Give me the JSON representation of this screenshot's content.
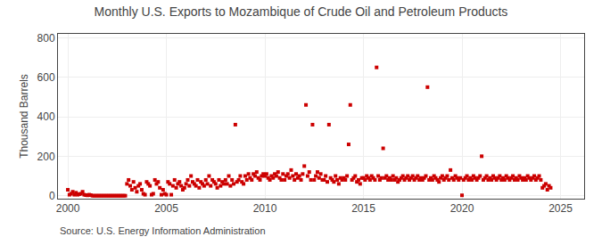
{
  "chart_data": {
    "type": "scatter",
    "title": "Monthly U.S. Exports to Mozambique of Crude Oil and Petroleum Products",
    "ylabel": "Thousand Barrels",
    "annotations": [
      "Source: U.S. Energy Information Administration"
    ],
    "color": "#cc0000",
    "marker": "square",
    "grid": true,
    "xlim": [
      1999.5,
      2026.2
    ],
    "ylim": [
      -15,
      820
    ],
    "xticks": [
      2000,
      2005,
      2010,
      2015,
      2020,
      2025
    ],
    "yticks": [
      0,
      200,
      400,
      600,
      800
    ],
    "x": [
      2000.0,
      2000.083,
      2000.167,
      2000.25,
      2000.333,
      2000.417,
      2000.5,
      2000.583,
      2000.667,
      2000.75,
      2000.833,
      2000.917,
      2001.0,
      2001.083,
      2001.167,
      2001.25,
      2001.333,
      2001.417,
      2001.5,
      2001.583,
      2001.667,
      2001.75,
      2001.833,
      2001.917,
      2002.0,
      2002.083,
      2002.167,
      2002.25,
      2002.333,
      2002.417,
      2002.5,
      2002.583,
      2002.667,
      2002.75,
      2002.833,
      2002.917,
      2003.0,
      2003.083,
      2003.167,
      2003.25,
      2003.333,
      2003.417,
      2003.5,
      2003.583,
      2003.667,
      2003.75,
      2003.833,
      2003.917,
      2004.0,
      2004.083,
      2004.167,
      2004.25,
      2004.333,
      2004.417,
      2004.5,
      2004.583,
      2004.667,
      2004.75,
      2004.833,
      2004.917,
      2005.0,
      2005.083,
      2005.167,
      2005.25,
      2005.333,
      2005.417,
      2005.5,
      2005.583,
      2005.667,
      2005.75,
      2005.833,
      2005.917,
      2006.0,
      2006.083,
      2006.167,
      2006.25,
      2006.333,
      2006.417,
      2006.5,
      2006.583,
      2006.667,
      2006.75,
      2006.833,
      2006.917,
      2007.0,
      2007.083,
      2007.167,
      2007.25,
      2007.333,
      2007.417,
      2007.5,
      2007.583,
      2007.667,
      2007.75,
      2007.833,
      2007.917,
      2008.0,
      2008.083,
      2008.167,
      2008.25,
      2008.333,
      2008.417,
      2008.5,
      2008.583,
      2008.667,
      2008.75,
      2008.833,
      2008.917,
      2009.0,
      2009.083,
      2009.167,
      2009.25,
      2009.333,
      2009.417,
      2009.5,
      2009.583,
      2009.667,
      2009.75,
      2009.833,
      2009.917,
      2010.0,
      2010.083,
      2010.167,
      2010.25,
      2010.333,
      2010.417,
      2010.5,
      2010.583,
      2010.667,
      2010.75,
      2010.833,
      2010.917,
      2011.0,
      2011.083,
      2011.167,
      2011.25,
      2011.333,
      2011.417,
      2011.5,
      2011.583,
      2011.667,
      2011.75,
      2011.833,
      2011.917,
      2012.0,
      2012.083,
      2012.167,
      2012.25,
      2012.333,
      2012.417,
      2012.5,
      2012.583,
      2012.667,
      2012.75,
      2012.833,
      2012.917,
      2013.0,
      2013.083,
      2013.167,
      2013.25,
      2013.333,
      2013.417,
      2013.5,
      2013.583,
      2013.667,
      2013.75,
      2013.833,
      2013.917,
      2014.0,
      2014.083,
      2014.167,
      2014.25,
      2014.333,
      2014.417,
      2014.5,
      2014.583,
      2014.667,
      2014.75,
      2014.833,
      2014.917,
      2015.0,
      2015.083,
      2015.167,
      2015.25,
      2015.333,
      2015.417,
      2015.5,
      2015.583,
      2015.667,
      2015.75,
      2015.833,
      2015.917,
      2016.0,
      2016.083,
      2016.167,
      2016.25,
      2016.333,
      2016.417,
      2016.5,
      2016.583,
      2016.667,
      2016.75,
      2016.833,
      2016.917,
      2017.0,
      2017.083,
      2017.167,
      2017.25,
      2017.333,
      2017.417,
      2017.5,
      2017.583,
      2017.667,
      2017.75,
      2017.833,
      2017.917,
      2018.0,
      2018.083,
      2018.167,
      2018.25,
      2018.333,
      2018.417,
      2018.5,
      2018.583,
      2018.667,
      2018.75,
      2018.833,
      2018.917,
      2019.0,
      2019.083,
      2019.167,
      2019.25,
      2019.333,
      2019.417,
      2019.5,
      2019.583,
      2019.667,
      2019.75,
      2019.833,
      2019.917,
      2020.0,
      2020.083,
      2020.167,
      2020.25,
      2020.333,
      2020.417,
      2020.5,
      2020.583,
      2020.667,
      2020.75,
      2020.833,
      2020.917,
      2021.0,
      2021.083,
      2021.167,
      2021.25,
      2021.333,
      2021.417,
      2021.5,
      2021.583,
      2021.667,
      2021.75,
      2021.833,
      2021.917,
      2022.0,
      2022.083,
      2022.167,
      2022.25,
      2022.333,
      2022.417,
      2022.5,
      2022.583,
      2022.667,
      2022.75,
      2022.833,
      2022.917,
      2023.0,
      2023.083,
      2023.167,
      2023.25,
      2023.333,
      2023.417,
      2023.5,
      2023.583,
      2023.667,
      2023.75,
      2023.833,
      2023.917,
      2024.0,
      2024.083,
      2024.167,
      2024.25,
      2024.333,
      2024.417,
      2024.5
    ],
    "values": [
      30,
      5,
      10,
      20,
      5,
      15,
      5,
      8,
      10,
      20,
      5,
      3,
      2,
      5,
      3,
      0,
      0,
      0,
      0,
      0,
      0,
      0,
      0,
      0,
      0,
      0,
      0,
      0,
      0,
      0,
      0,
      0,
      0,
      0,
      0,
      0,
      60,
      80,
      50,
      30,
      70,
      40,
      20,
      50,
      60,
      30,
      10,
      5,
      70,
      60,
      50,
      5,
      10,
      80,
      60,
      70,
      40,
      5,
      30,
      10,
      5,
      70,
      60,
      5,
      50,
      80,
      40,
      60,
      70,
      50,
      30,
      40,
      60,
      80,
      50,
      100,
      70,
      60,
      50,
      80,
      40,
      70,
      60,
      50,
      80,
      60,
      100,
      50,
      80,
      70,
      60,
      40,
      80,
      50,
      70,
      60,
      80,
      60,
      100,
      50,
      80,
      60,
      360,
      70,
      80,
      100,
      70,
      60,
      100,
      80,
      110,
      90,
      80,
      110,
      100,
      120,
      90,
      80,
      100,
      110,
      100,
      110,
      90,
      80,
      100,
      90,
      110,
      100,
      120,
      90,
      80,
      110,
      80,
      100,
      110,
      90,
      130,
      100,
      80,
      110,
      90,
      100,
      80,
      110,
      150,
      460,
      100,
      120,
      80,
      360,
      80,
      100,
      120,
      90,
      110,
      80,
      80,
      100,
      70,
      360,
      90,
      80,
      70,
      100,
      80,
      60,
      90,
      80,
      90,
      80,
      100,
      260,
      460,
      80,
      90,
      100,
      70,
      80,
      60,
      90,
      90,
      80,
      100,
      90,
      80,
      100,
      90,
      80,
      650,
      100,
      80,
      90,
      240,
      90,
      100,
      80,
      90,
      80,
      100,
      80,
      90,
      70,
      80,
      90,
      100,
      80,
      90,
      100,
      80,
      90,
      100,
      80,
      90,
      100,
      80,
      90,
      80,
      90,
      100,
      550,
      80,
      90,
      80,
      100,
      90,
      80,
      70,
      90,
      100,
      80,
      90,
      100,
      80,
      130,
      90,
      80,
      100,
      90,
      80,
      90,
      2,
      80,
      90,
      100,
      80,
      90,
      80,
      100,
      90,
      80,
      90,
      100,
      200,
      80,
      90,
      100,
      80,
      90,
      80,
      100,
      90,
      80,
      90,
      100,
      80,
      90,
      80,
      100,
      90,
      80,
      90,
      100,
      80,
      90,
      80,
      100,
      90,
      80,
      90,
      80,
      100,
      90,
      80,
      90,
      100,
      80,
      90,
      100,
      80,
      40,
      50,
      60,
      30,
      50,
      40
    ]
  }
}
